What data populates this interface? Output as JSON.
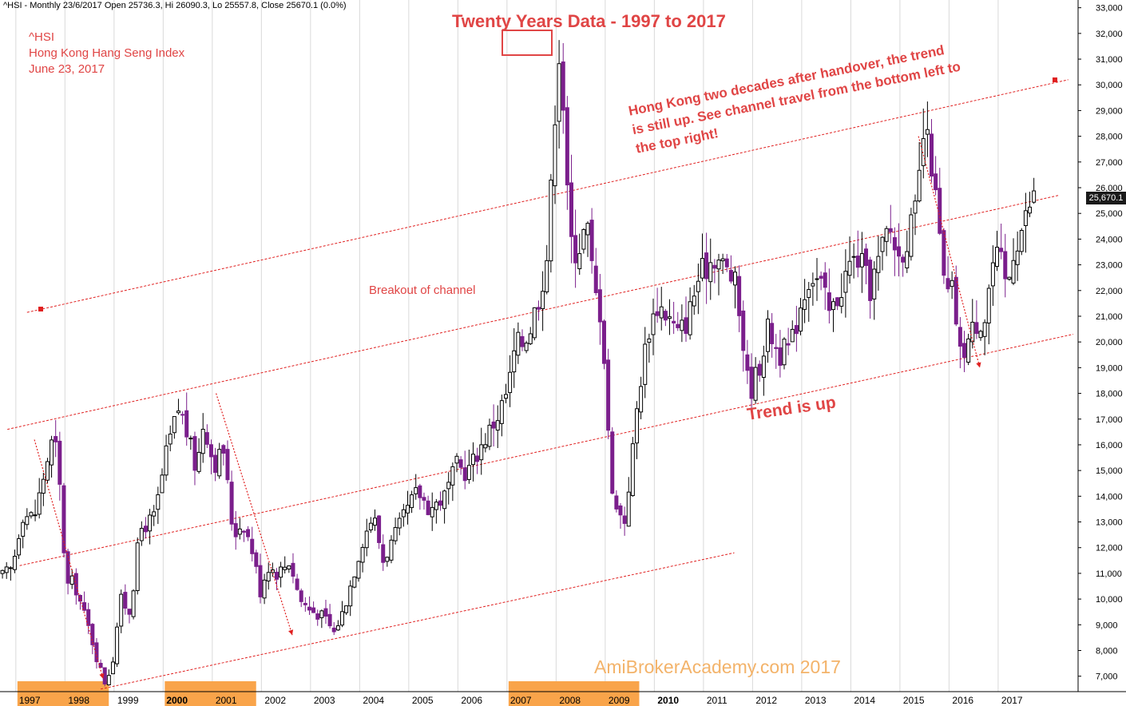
{
  "header": "^HSI - Monthly 23/6/2017 Open 25736.3, Hi 26090.3, Lo 25557.8, Close 25670.1 (0.0%)",
  "symbol": {
    "ticker": "^HSI",
    "name": "Hong Kong Hang Seng Index",
    "date": "June 23, 2017"
  },
  "annotations": {
    "title": "Twenty Years Data -  1997 to 2017",
    "note": "Hong Kong two decades after handover, the trend is still up. See channel travel from the bottom left to the top right!",
    "trend": "Trend is up",
    "breakout": "Breakout of channel",
    "watermark": "AmiBrokerAcademy.com 2017",
    "last_close_label": "25,670.1"
  },
  "colors": {
    "up": "#000000",
    "down": "#7b1f8c",
    "annotation": "#e04545",
    "highlight": "#f9a44a"
  },
  "chart_data": {
    "type": "candlestick",
    "period": "monthly",
    "y_axis": {
      "min": 6400,
      "max": 33300,
      "side": "right",
      "ticks": [
        7000,
        8000,
        9000,
        10000,
        11000,
        12000,
        13000,
        14000,
        15000,
        16000,
        17000,
        18000,
        19000,
        20000,
        21000,
        22000,
        23000,
        24000,
        25000,
        26000,
        27000,
        28000,
        29000,
        30000,
        31000,
        32000,
        33000
      ],
      "tick_labels": [
        "7,000",
        "8,000",
        "9,000",
        "10,000",
        "11,000",
        "12,000",
        "13,000",
        "14,000",
        "15,000",
        "16,000",
        "17,000",
        "18,000",
        "19,000",
        "20,000",
        "21,000",
        "22,000",
        "23,000",
        "24,000",
        "25,000",
        "26,000",
        "27,000",
        "28,000",
        "29,000",
        "30,000",
        "31,000",
        "32,000",
        "33,000"
      ]
    },
    "x_axis": {
      "start": 1996.45,
      "end": 2018.4,
      "labels": [
        {
          "x": 1997.0,
          "text": "1997",
          "bold": false
        },
        {
          "x": 1998.0,
          "text": "1998",
          "bold": false
        },
        {
          "x": 1999.0,
          "text": "1999",
          "bold": false
        },
        {
          "x": 2000.0,
          "text": "2000",
          "bold": true
        },
        {
          "x": 2001.0,
          "text": "2001",
          "bold": false
        },
        {
          "x": 2002.0,
          "text": "2002",
          "bold": false
        },
        {
          "x": 2003.0,
          "text": "2003",
          "bold": false
        },
        {
          "x": 2004.0,
          "text": "2004",
          "bold": false
        },
        {
          "x": 2005.0,
          "text": "2005",
          "bold": false
        },
        {
          "x": 2006.0,
          "text": "2006",
          "bold": false
        },
        {
          "x": 2007.0,
          "text": "2007",
          "bold": false
        },
        {
          "x": 2008.0,
          "text": "2008",
          "bold": false
        },
        {
          "x": 2009.0,
          "text": "2009",
          "bold": false
        },
        {
          "x": 2010.0,
          "text": "2010",
          "bold": true
        },
        {
          "x": 2011.0,
          "text": "2011",
          "bold": false
        },
        {
          "x": 2012.0,
          "text": "2012",
          "bold": false
        },
        {
          "x": 2013.0,
          "text": "2013",
          "bold": false
        },
        {
          "x": 2014.0,
          "text": "2014",
          "bold": false
        },
        {
          "x": 2015.0,
          "text": "2015",
          "bold": false
        },
        {
          "x": 2016.0,
          "text": "2016",
          "bold": false
        },
        {
          "x": 2017.0,
          "text": "2017",
          "bold": false
        }
      ]
    },
    "series_path": [
      [
        1996.5,
        10900
      ],
      [
        1996.7,
        11200
      ],
      [
        1996.9,
        13300
      ],
      [
        1997.15,
        13200
      ],
      [
        1997.4,
        15300
      ],
      [
        1997.55,
        16400
      ],
      [
        1997.65,
        14800
      ],
      [
        1997.8,
        10500
      ],
      [
        1997.95,
        10700
      ],
      [
        1998.1,
        9800
      ],
      [
        1998.3,
        8600
      ],
      [
        1998.45,
        7500
      ],
      [
        1998.6,
        6700
      ],
      [
        1998.75,
        7700
      ],
      [
        1998.9,
        10000
      ],
      [
        1999.1,
        9500
      ],
      [
        1999.3,
        12700
      ],
      [
        1999.6,
        13200
      ],
      [
        1999.85,
        15800
      ],
      [
        2000.1,
        17500
      ],
      [
        2000.25,
        16500
      ],
      [
        2000.45,
        15000
      ],
      [
        2000.6,
        17000
      ],
      [
        2000.8,
        15200
      ],
      [
        2001.0,
        15800
      ],
      [
        2001.2,
        12500
      ],
      [
        2001.4,
        13000
      ],
      [
        2001.6,
        11800
      ],
      [
        2001.75,
        10300
      ],
      [
        2001.9,
        11300
      ],
      [
        2002.1,
        11000
      ],
      [
        2002.35,
        11500
      ],
      [
        2002.55,
        10000
      ],
      [
        2002.75,
        9600
      ],
      [
        2003.05,
        9300
      ],
      [
        2003.25,
        8700
      ],
      [
        2003.45,
        9600
      ],
      [
        2003.65,
        11000
      ],
      [
        2003.85,
        12400
      ],
      [
        2004.05,
        13300
      ],
      [
        2004.25,
        11500
      ],
      [
        2004.5,
        12500
      ],
      [
        2004.75,
        13500
      ],
      [
        2004.95,
        14200
      ],
      [
        2005.2,
        13500
      ],
      [
        2005.5,
        14000
      ],
      [
        2005.75,
        15200
      ],
      [
        2005.95,
        14900
      ],
      [
        2006.2,
        15800
      ],
      [
        2006.4,
        16500
      ],
      [
        2006.6,
        17200
      ],
      [
        2006.8,
        18200
      ],
      [
        2006.95,
        19900
      ],
      [
        2007.1,
        20000
      ],
      [
        2007.25,
        20600
      ],
      [
        2007.45,
        22000
      ],
      [
        2007.6,
        23500
      ],
      [
        2007.7,
        27000
      ],
      [
        2007.8,
        31300
      ],
      [
        2007.88,
        31500
      ],
      [
        2007.95,
        27300
      ],
      [
        2008.05,
        24000
      ],
      [
        2008.2,
        23500
      ],
      [
        2008.4,
        24600
      ],
      [
        2008.55,
        22000
      ],
      [
        2008.7,
        21000
      ],
      [
        2008.8,
        18000
      ],
      [
        2008.9,
        14000
      ],
      [
        2009.0,
        13800
      ],
      [
        2009.15,
        12800
      ],
      [
        2009.3,
        15200
      ],
      [
        2009.45,
        18000
      ],
      [
        2009.65,
        20500
      ],
      [
        2009.85,
        21500
      ],
      [
        2010.05,
        21000
      ],
      [
        2010.25,
        20300
      ],
      [
        2010.45,
        20900
      ],
      [
        2010.65,
        22400
      ],
      [
        2010.85,
        23000
      ],
      [
        2011.0,
        23400
      ],
      [
        2011.2,
        22900
      ],
      [
        2011.4,
        22400
      ],
      [
        2011.55,
        20500
      ],
      [
        2011.7,
        18000
      ],
      [
        2011.9,
        19000
      ],
      [
        2012.1,
        20600
      ],
      [
        2012.3,
        19500
      ],
      [
        2012.55,
        19800
      ],
      [
        2012.75,
        21500
      ],
      [
        2012.95,
        22700
      ],
      [
        2013.15,
        22300
      ],
      [
        2013.35,
        21000
      ],
      [
        2013.55,
        22000
      ],
      [
        2013.75,
        23000
      ],
      [
        2013.95,
        23300
      ],
      [
        2014.15,
        22000
      ],
      [
        2014.35,
        23200
      ],
      [
        2014.55,
        24500
      ],
      [
        2014.75,
        23300
      ],
      [
        2014.95,
        24200
      ],
      [
        2015.1,
        25000
      ],
      [
        2015.25,
        28000
      ],
      [
        2015.4,
        27300
      ],
      [
        2015.55,
        24600
      ],
      [
        2015.7,
        21700
      ],
      [
        2015.85,
        22000
      ],
      [
        2016.0,
        19500
      ],
      [
        2016.15,
        20000
      ],
      [
        2016.3,
        20700
      ],
      [
        2016.5,
        21000
      ],
      [
        2016.65,
        23000
      ],
      [
        2016.8,
        23300
      ],
      [
        2016.95,
        22000
      ],
      [
        2017.1,
        23800
      ],
      [
        2017.3,
        24600
      ],
      [
        2017.47,
        25670
      ]
    ]
  }
}
